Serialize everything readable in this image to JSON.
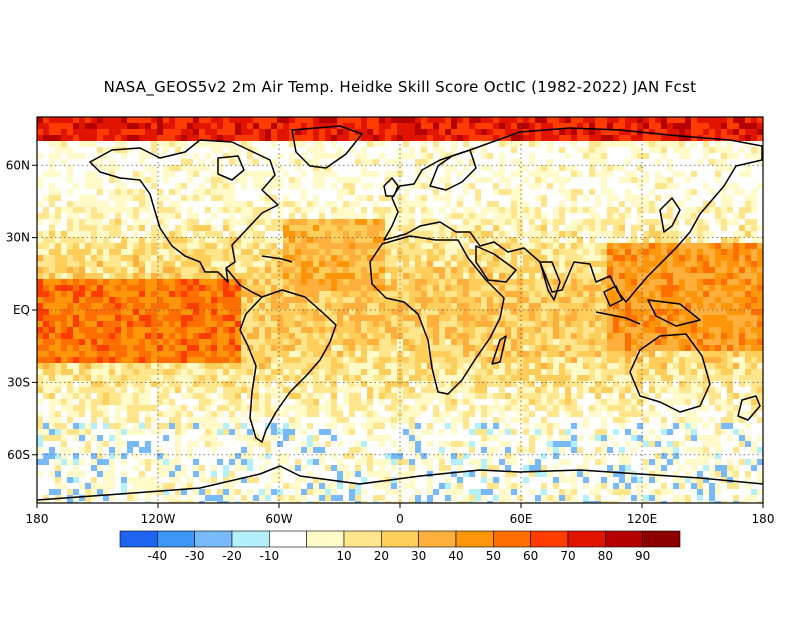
{
  "title": "NASA_GEOS5v2 2m Air Temp. Heidke Skill Score OctIC (1982-2022) JAN Fcst",
  "map": {
    "lat_labels": [
      {
        "lat": 60,
        "label": "60N"
      },
      {
        "lat": 30,
        "label": "30N"
      },
      {
        "lat": 0,
        "label": "EQ"
      },
      {
        "lat": -30,
        "label": "30S"
      },
      {
        "lat": -60,
        "label": "60S"
      }
    ],
    "lon_labels": [
      {
        "lon": -180,
        "label": "180"
      },
      {
        "lon": -120,
        "label": "120W"
      },
      {
        "lon": -60,
        "label": "60W"
      },
      {
        "lon": 0,
        "label": "0"
      },
      {
        "lon": 60,
        "label": "60E"
      },
      {
        "lon": 120,
        "label": "120E"
      },
      {
        "lon": 180,
        "label": "180"
      }
    ],
    "lat_range": [
      -80,
      80
    ],
    "lon_range": [
      -180,
      180
    ],
    "grid": "dotted",
    "field_description_regions": [
      {
        "name": "tropical-pacific",
        "lon": [
          -180,
          -80
        ],
        "lat": [
          -20,
          15
        ],
        "level": 65
      },
      {
        "name": "maritime-continent",
        "lon": [
          100,
          180
        ],
        "lat": [
          -15,
          30
        ],
        "level": 55
      },
      {
        "name": "north-atlantic-subtropics",
        "lon": [
          -60,
          -10
        ],
        "lat": [
          10,
          40
        ],
        "level": 45
      },
      {
        "name": "north-pole",
        "lon": [
          -180,
          180
        ],
        "lat": [
          72,
          80
        ],
        "level": 85
      }
    ]
  },
  "colorbar": {
    "colors": [
      "#1e64f0",
      "#3c96f5",
      "#78b9fa",
      "#b4f0fa",
      "#ffffff",
      "#fffac8",
      "#ffe68c",
      "#ffcd5a",
      "#ffaf3c",
      "#ff960a",
      "#ff6e00",
      "#ff3c00",
      "#e11400",
      "#b40000",
      "#8c0000"
    ],
    "labels": [
      "-40",
      "-30",
      "-20",
      "-10",
      "10",
      "20",
      "30",
      "40",
      "50",
      "60",
      "70",
      "80",
      "90"
    ]
  }
}
